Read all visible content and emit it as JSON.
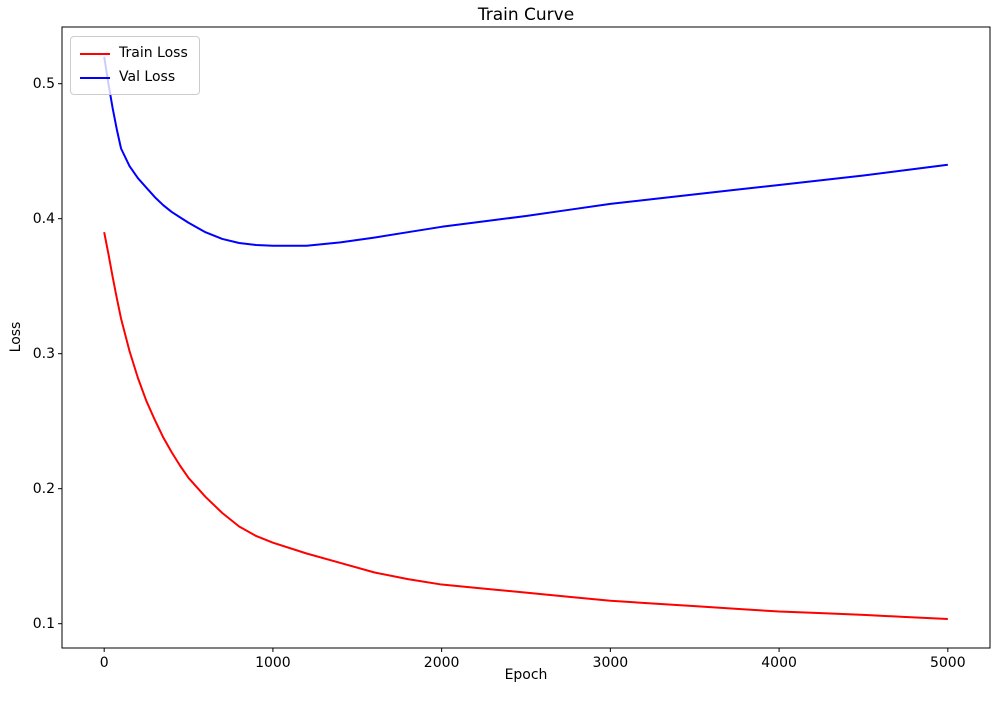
{
  "figure": {
    "background": "#ffffff",
    "text_color": "#000000"
  },
  "chart_data": {
    "type": "line",
    "title": "Train Curve",
    "xlabel": "Epoch",
    "ylabel": "Loss",
    "grid": false,
    "legend_position": "upper left",
    "axis_color": "#000000",
    "line_width": 2,
    "xlim": [
      -250,
      5250
    ],
    "ylim": [
      0.082,
      0.542
    ],
    "xticks": [
      {
        "value": 0,
        "label": "0"
      },
      {
        "value": 1000,
        "label": "1000"
      },
      {
        "value": 2000,
        "label": "2000"
      },
      {
        "value": 3000,
        "label": "3000"
      },
      {
        "value": 4000,
        "label": "4000"
      },
      {
        "value": 5000,
        "label": "5000"
      }
    ],
    "yticks": [
      {
        "value": 0.1,
        "label": "0.1"
      },
      {
        "value": 0.2,
        "label": "0.2"
      },
      {
        "value": 0.3,
        "label": "0.3"
      },
      {
        "value": 0.4,
        "label": "0.4"
      },
      {
        "value": 0.5,
        "label": "0.5"
      }
    ],
    "x": [
      0,
      25,
      50,
      75,
      100,
      150,
      200,
      250,
      300,
      350,
      400,
      450,
      500,
      600,
      700,
      800,
      900,
      1000,
      1200,
      1400,
      1600,
      1800,
      2000,
      2250,
      2500,
      2750,
      3000,
      3250,
      3500,
      3750,
      4000,
      4250,
      4500,
      4750,
      5000
    ],
    "series": [
      {
        "name": "Train Loss",
        "color": "#ff0000",
        "values": [
          0.39,
          0.374,
          0.357,
          0.341,
          0.326,
          0.302,
          0.282,
          0.265,
          0.251,
          0.238,
          0.227,
          0.217,
          0.208,
          0.194,
          0.182,
          0.172,
          0.165,
          0.16,
          0.152,
          0.145,
          0.138,
          0.133,
          0.129,
          0.126,
          0.123,
          0.12,
          0.117,
          0.115,
          0.113,
          0.111,
          0.109,
          0.1078,
          0.1065,
          0.105,
          0.1035
        ]
      },
      {
        "name": "Val Loss",
        "color": "#0000ff",
        "values": [
          0.52,
          0.5,
          0.482,
          0.466,
          0.452,
          0.439,
          0.43,
          0.423,
          0.416,
          0.41,
          0.405,
          0.401,
          0.397,
          0.39,
          0.385,
          0.382,
          0.3805,
          0.38,
          0.38,
          0.3825,
          0.386,
          0.39,
          0.394,
          0.398,
          0.402,
          0.4065,
          0.411,
          0.4145,
          0.418,
          0.4215,
          0.425,
          0.4285,
          0.432,
          0.436,
          0.44
        ]
      }
    ]
  }
}
